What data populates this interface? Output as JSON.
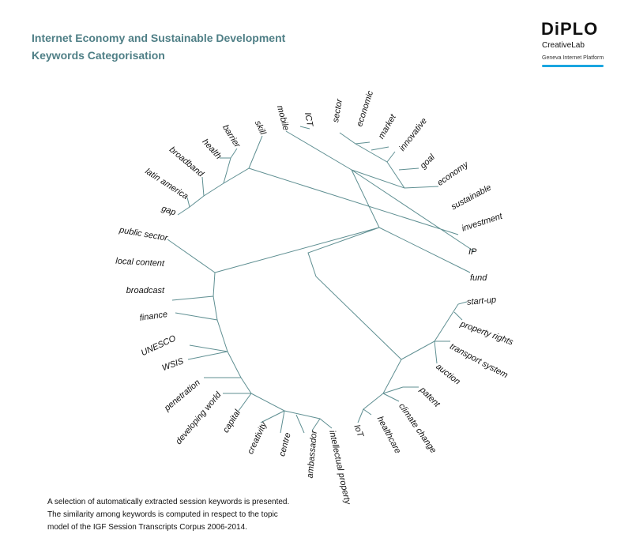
{
  "header": {
    "title_line1": "Internet Economy and Sustainable Development",
    "title_line2": "Keywords Categorisation",
    "logo": "DiPLO",
    "logo_sub": "CreativeLab",
    "logo_tag": "Geneva Internet Platform"
  },
  "keywords": [
    "gap",
    "latin america",
    "broadband",
    "health",
    "barrier",
    "skill",
    "mobile",
    "ICT",
    "sector",
    "economic",
    "market",
    "innovative",
    "goal",
    "economy",
    "sustainable",
    "investment",
    "IP",
    "fund",
    "start-up",
    "property rights",
    "transport system",
    "auction",
    "patent",
    "climate change",
    "healthcare",
    "IoT",
    "intellectual property",
    "ambassador",
    "centre",
    "creativity",
    "capital",
    "developing world",
    "penetration",
    "WSIS",
    "UNESCO",
    "finance",
    "broadcast",
    "local content",
    "public sector"
  ],
  "footer": [
    "A selection of automatically extracted session keywords is presented.",
    "The similarity among keywords is computed in respect to the topic",
    "model of the IGF Session Transcripts Corpus 2006-2014."
  ]
}
